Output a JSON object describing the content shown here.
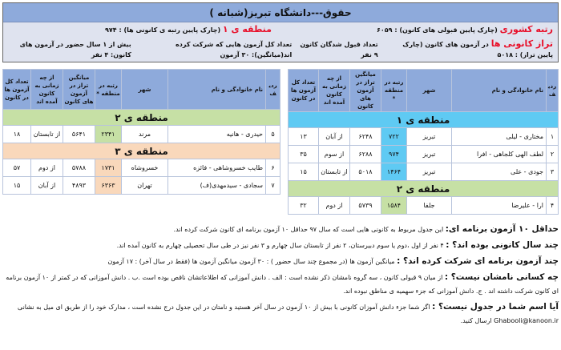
{
  "header": {
    "title": "حقوق---دانشگاه تبریز(شبانه )",
    "rank_label": "رتبه کشوری",
    "rank_text": "(چارک پایین قبولی های کانون) : ۶۰۵۹",
    "region_label": "منطقه ی ۱",
    "region_text": "(چارک پایین رتبه ی کانونی ها) : ۹۷۴",
    "taraz_label": "تراز کانونی ها",
    "taraz_text": "در آزمون های کانون (چارک پایین تراز) : ۵۰۱۸",
    "accepted": "تعداد قبول شدگان کانون ۹ نفر",
    "exams": "تعداد کل آزمون هایی که شرکت کرده اند(میانگین): ۳۰ آزمون",
    "years": "بیش از ۱ سال حضور در آزمون های کانون: ۴ نفر"
  },
  "columns": [
    "ردیف",
    "نام خانوادگی و نام",
    "شهر",
    "رتبه در منطقه *",
    "میانگین تراز در آزمون های کانون",
    "از چه زمانی به کانون آمده اند",
    "تعداد کل آزمون ها در کانون"
  ],
  "tables": [
    [
      {
        "region": "منطقه ی ۱",
        "cls": "r1",
        "rows": [
          [
            "۱",
            "مختاری - لیلی",
            "تبریز",
            "۷۲۲",
            "۶۲۴۸",
            "از آبان",
            "۱۳"
          ],
          [
            "۲",
            "لطف الهی کلجاهی - افرا",
            "تبریز",
            "۹۷۴",
            "۶۲۸۸",
            "از سوم",
            "۳۵"
          ],
          [
            "۳",
            "جودی - علی",
            "تبریز",
            "۱۴۶۴",
            "۵۰۱۸",
            "از تابستان",
            "۱۵"
          ]
        ]
      },
      {
        "region": "منطقه ی ۲",
        "cls": "r2",
        "rows": [
          [
            "۴",
            "ارا - علیرضا",
            "جلفا",
            "۱۵۸۴",
            "۵۷۳۹",
            "از دوم",
            "۳۲"
          ]
        ]
      }
    ],
    [
      {
        "region": "منطقه ی ۲",
        "cls": "r2",
        "rows": [
          [
            "۵",
            "حیدری - هانیه",
            "مرند",
            "۲۳۴۱",
            "۵۶۴۱",
            "از تابستان",
            "۱۸"
          ]
        ]
      },
      {
        "region": "منطقه ی ۳",
        "cls": "r3",
        "rows": [
          [
            "۶",
            "طایب خسروشاهی - فائزه",
            "خسروشاه",
            "۱۷۳۱",
            "۵۷۸۸",
            "از دوم",
            "۵۷"
          ],
          [
            "۷",
            "سجادی - سیدمهدی(ف)",
            "تهران",
            "۶۳۶۳",
            "۴۸۹۳",
            "از آبان",
            "۱۵"
          ]
        ]
      }
    ]
  ],
  "notes": [
    {
      "h": "حداقل ۱۰ آزمون برنامه ای:",
      "t": " این جدول مربوط به کانونی هایی است که سال ۹۷ حداقل ۱۰ آزمون برنامه ای کانون شرکت کرده اند."
    },
    {
      "h": "چند سال کانونی بوده اند؟ :",
      "t": " ۴ نفر از اول ،دوم یا سوم دبیرستان، ۲ نفر از تابستان سال چهارم و ۳ نفر نیز در طی سال تحصیلی چهارم به کانون آمده اند."
    },
    {
      "h": "چند آزمون برنامه ای شرکت کرده اند؟ :",
      "t": " میانگین آزمون ها (در مجموع چند سال حضور ) : ۳۰ آزمون     میانگین آزمون ها (فقط در سال آخر) : ۱۷ آزمون"
    },
    {
      "h": "چه کسانی نامشان نیست؟ :",
      "t": " از میان ۹ قبولی کانون ، سه گروه نامشان ذکر نشده است : الف . دانش آموزانی که اطلاعاتشان ناقص بوده است .ب . دانش آموزانی که در کمتر از ۱۰ آزمون برنامه ای کانون شرکت داشته اند . ج. دانش آموزانی که جزء سهمیه ی مناطق نبوده اند."
    },
    {
      "h": "آیا اسم شما در جدول نیست؟ :",
      "t": " اگر شما جزء دانش آموزان کانونی با بیش از ۱۰ آزمون در سال آخر هستید و نامتان در این جدول درج نشده است ، مدارک خود را از طریق ای میل به نشانی Ghabooli@kanoon.ir ارسال کنید."
    }
  ]
}
